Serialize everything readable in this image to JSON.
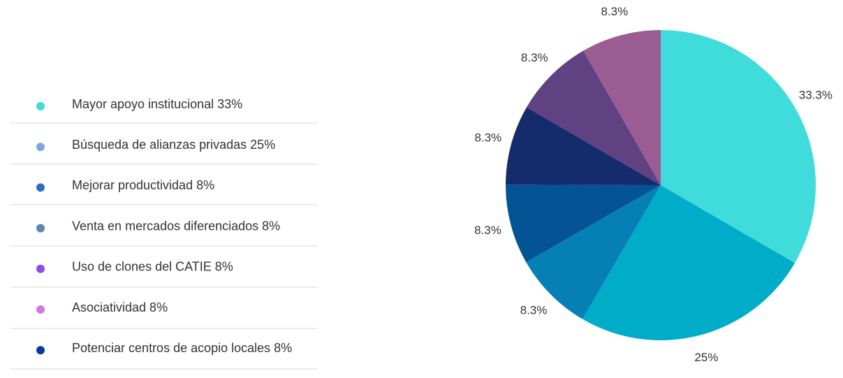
{
  "chart_data": {
    "type": "pie",
    "values": [
      33.3,
      25,
      8.3,
      8.3,
      8.3,
      8.3,
      8.3
    ],
    "value_labels": [
      "33.3%",
      "25%",
      "8.3%",
      "8.3%",
      "8.3%",
      "8.3%",
      "8.3%"
    ],
    "colors": [
      "#40dbdb",
      "#00adc9",
      "#0680b4",
      "#045394",
      "#152c6c",
      "#604282",
      "#9b5c93"
    ],
    "legend": [
      {
        "label": "Mayor apoyo institucional 33%",
        "color": "#3fdcd8"
      },
      {
        "label": "Búsqueda de alianzas privadas 25%",
        "color": "#7ba8dc"
      },
      {
        "label": "Mejorar productividad 8%",
        "color": "#2f6fc0"
      },
      {
        "label": "Venta en mercados diferenciados 8%",
        "color": "#5b86b0"
      },
      {
        "label": "Uso de clones del CATIE  8%",
        "color": "#8e4be8"
      },
      {
        "label": "Asociatividad  8%",
        "color": "#d07ae0"
      },
      {
        "label": "Potenciar centros de acopio locales  8%",
        "color": "#0a3a9e"
      }
    ]
  }
}
